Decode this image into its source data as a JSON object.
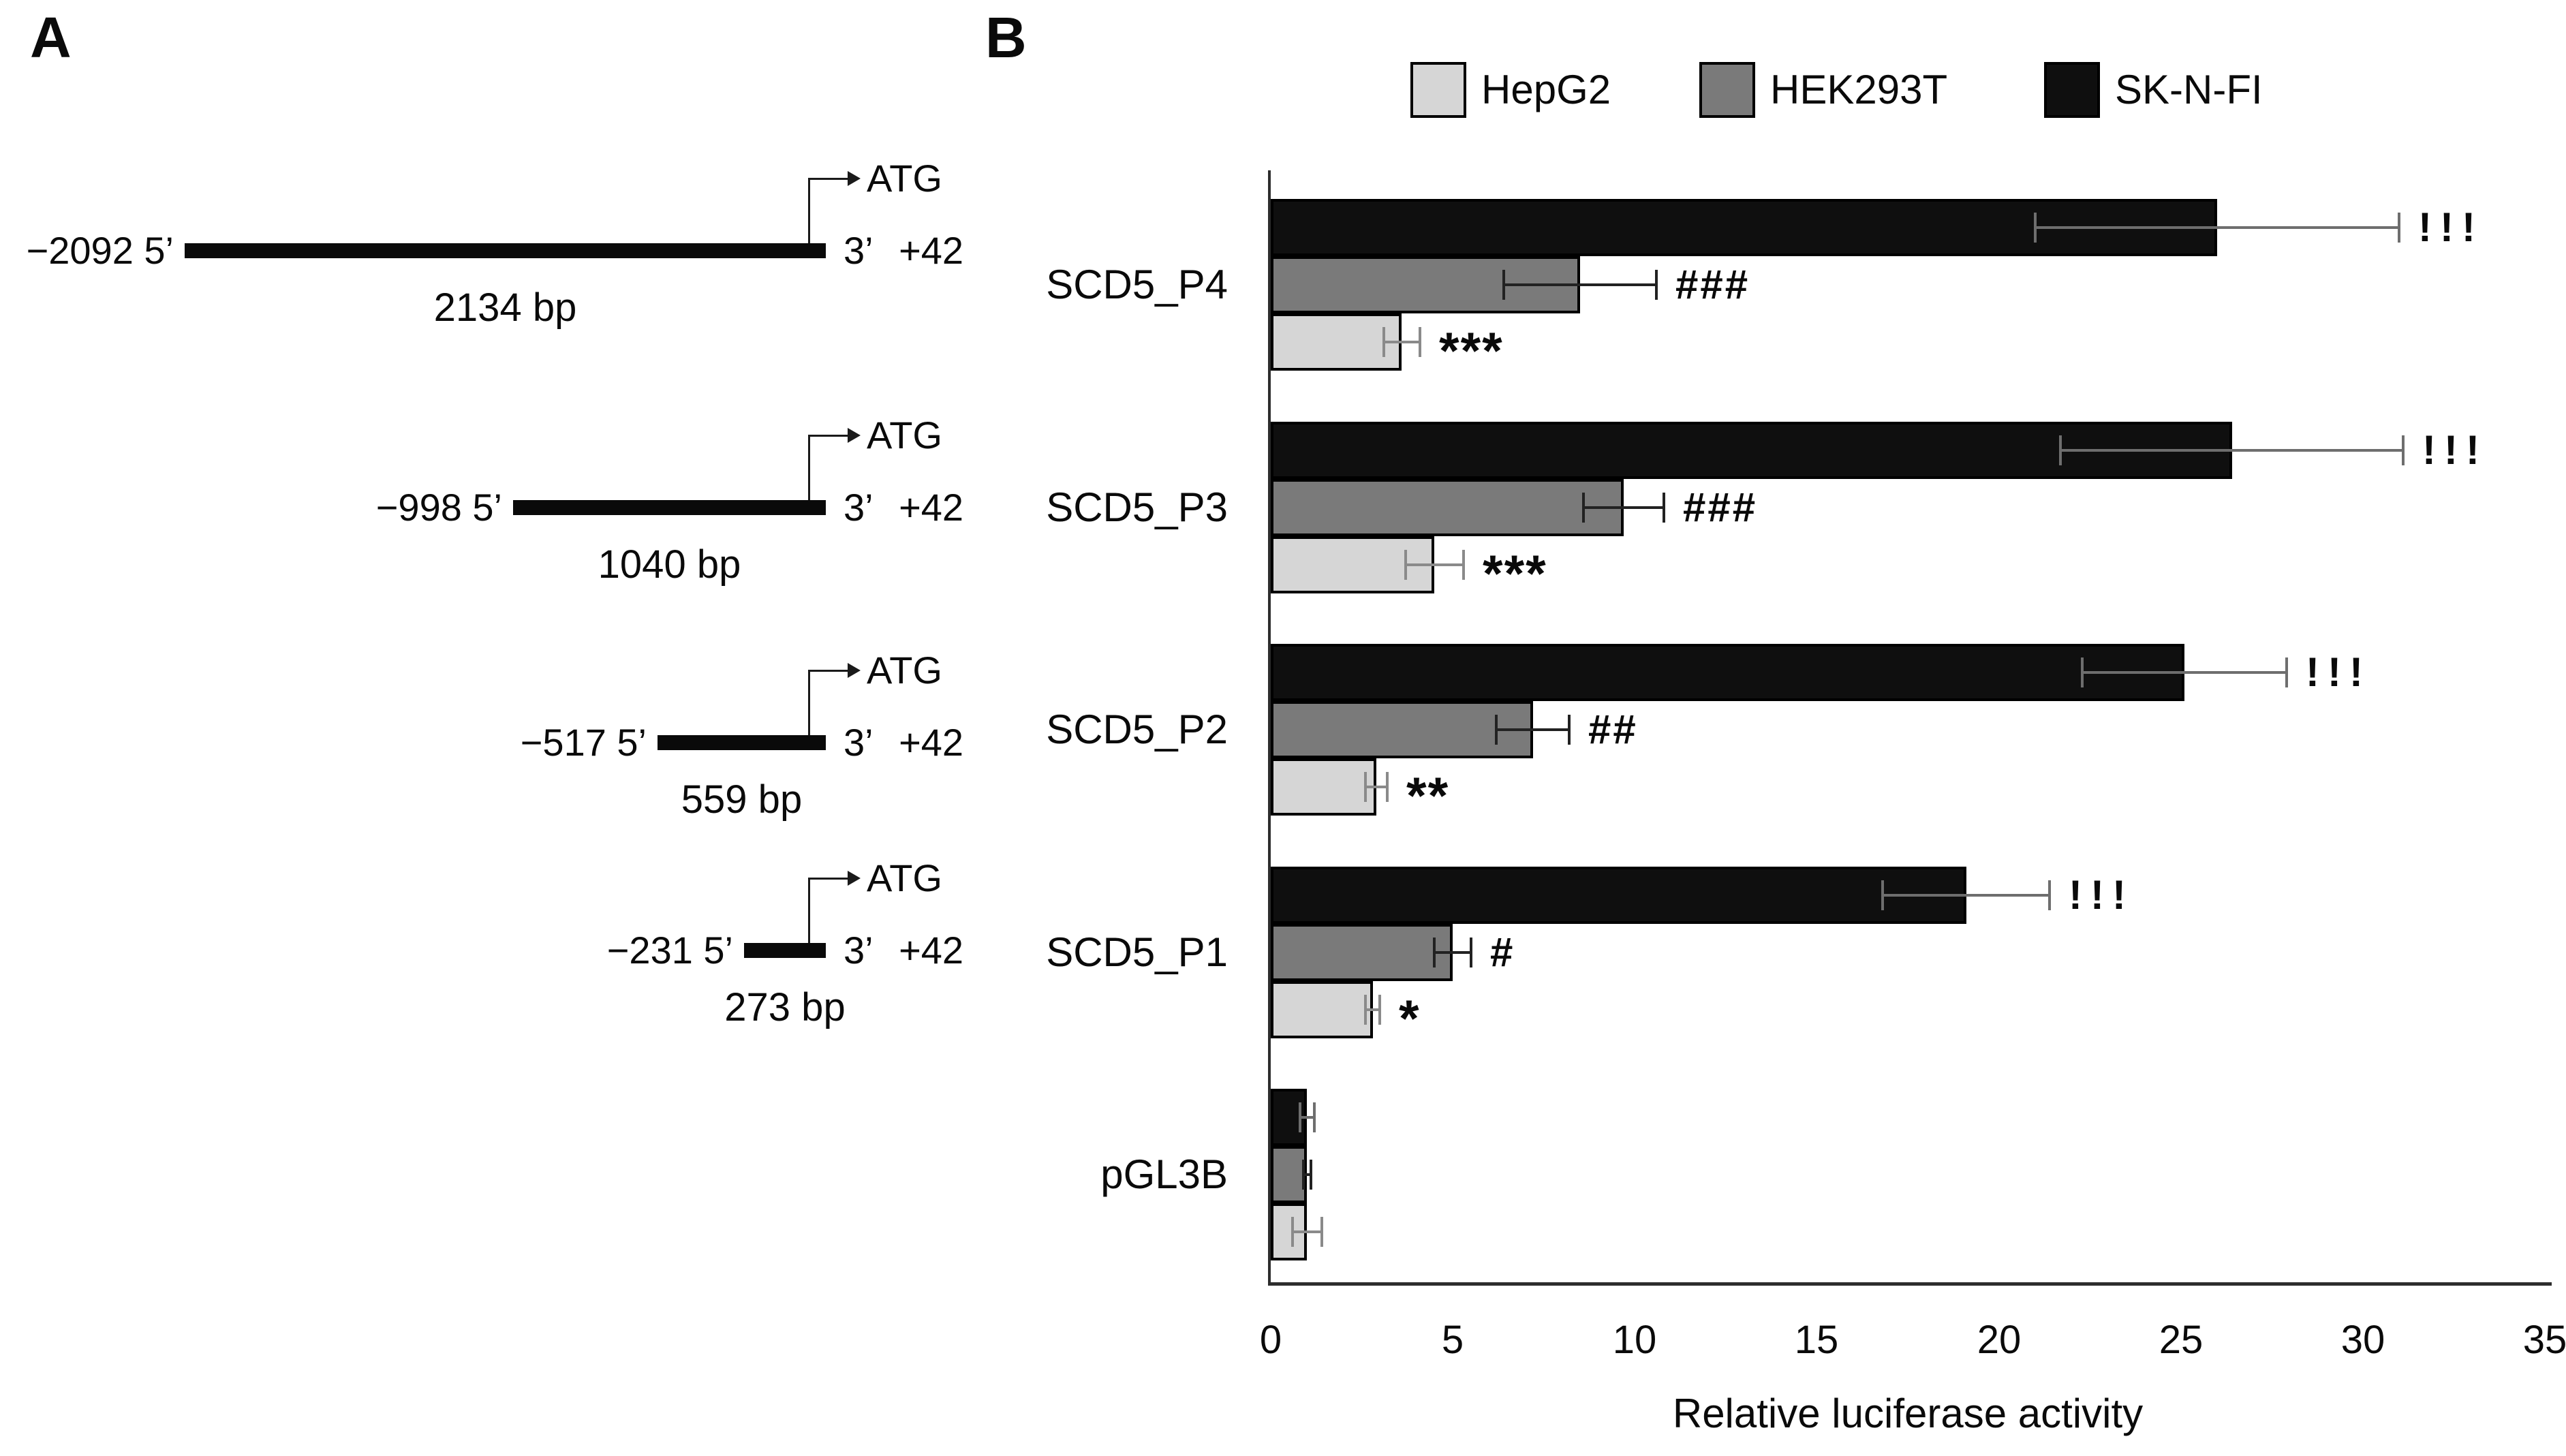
{
  "panel_a": {
    "label": "A",
    "constructs": [
      {
        "start_label": "−2092 5’",
        "end_label": "3’ +42",
        "atg_label": "ATG",
        "size_label": "2134 bp",
        "size_bp": 2134
      },
      {
        "start_label": "−998 5’",
        "end_label": "3’ +42",
        "atg_label": "ATG",
        "size_label": "1040 bp",
        "size_bp": 1040
      },
      {
        "start_label": "−517 5’",
        "end_label": "3’ +42",
        "atg_label": "ATG",
        "size_label": "559 bp",
        "size_bp": 559
      },
      {
        "start_label": "−231 5’",
        "end_label": "3’ +42",
        "atg_label": "ATG",
        "size_label": "273 bp",
        "size_bp": 273
      }
    ]
  },
  "panel_b": {
    "label": "B",
    "legend": [
      {
        "label": "HepG2",
        "color": "#d6d6d6"
      },
      {
        "label": "HEK293T",
        "color": "#7a7a7a"
      },
      {
        "label": "SK-N-FI",
        "color": "#0f0f0f"
      }
    ],
    "chart_data": {
      "type": "bar",
      "orientation": "horizontal",
      "title": "",
      "xlabel": "Relative luciferase activity",
      "ylabel": "",
      "xlim": [
        0,
        35
      ],
      "xticks": [
        0,
        5,
        10,
        15,
        20,
        25,
        30,
        35
      ],
      "grid": false,
      "legend_position": "top",
      "categories": [
        "SCD5_P4",
        "SCD5_P3",
        "SCD5_P2",
        "SCD5_P1",
        "pGL3B"
      ],
      "series": [
        {
          "name": "SK-N-FI",
          "color": "#0f0f0f",
          "values": [
            26.0,
            26.4,
            25.1,
            19.1,
            1.0
          ],
          "errors": [
            5.0,
            4.7,
            2.8,
            2.3,
            0.2
          ],
          "annotations": [
            "!!!",
            "!!!",
            "!!!",
            "!!!",
            ""
          ]
        },
        {
          "name": "HEK293T",
          "color": "#7a7a7a",
          "values": [
            8.5,
            9.7,
            7.2,
            5.0,
            1.0
          ],
          "errors": [
            2.1,
            1.1,
            1.0,
            0.5,
            0.1
          ],
          "annotations": [
            "###",
            "###",
            "##",
            "#",
            ""
          ]
        },
        {
          "name": "HepG2",
          "color": "#d6d6d6",
          "values": [
            3.6,
            4.5,
            2.9,
            2.8,
            1.0
          ],
          "errors": [
            0.5,
            0.8,
            0.3,
            0.2,
            0.4
          ],
          "annotations": [
            "***",
            "***",
            "**",
            "*",
            ""
          ]
        }
      ]
    }
  }
}
